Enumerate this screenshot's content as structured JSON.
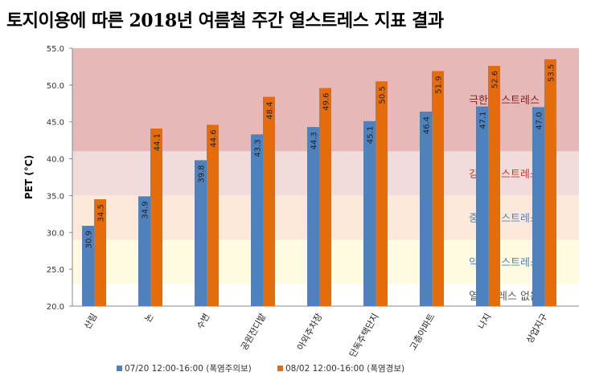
{
  "title": "토지이용에 따른 2018년 여름철 주간 열스트레스 지표 결과",
  "chart_data": {
    "type": "bar",
    "title": "토지이용에 따른 2018년 여름철 주간 열스트레스 지표 결과",
    "xlabel": "",
    "ylabel": "PET (°C)",
    "ylim": [
      20,
      55
    ],
    "yticks": [
      "20.0",
      "25.0",
      "30.0",
      "35.0",
      "40.0",
      "45.0",
      "50.0",
      "55.0"
    ],
    "categories": [
      "산림",
      "논",
      "수변",
      "공원잔디밭",
      "아외주차장",
      "단독주택단지",
      "고층아파트",
      "나지",
      "상업지구"
    ],
    "series": [
      {
        "name": "07/20 12:00-16:00 (폭염주의보)",
        "color": "#4f81bd",
        "values": [
          30.9,
          34.9,
          39.8,
          43.3,
          44.3,
          45.1,
          46.4,
          47.1,
          47.0
        ]
      },
      {
        "name": "08/02 12:00-16:00 (폭염경보)",
        "color": "#e46c0a",
        "values": [
          34.5,
          44.1,
          44.6,
          48.4,
          49.6,
          50.5,
          51.9,
          52.6,
          53.5
        ]
      }
    ],
    "bands": [
      {
        "label": "극한 열스트레스",
        "from": 41,
        "to": 55,
        "color": "#e6b9b8",
        "text_color": "#7f1f1f"
      },
      {
        "label": "강한 열스트레스",
        "from": 35,
        "to": 41,
        "color": "#f2dcdb",
        "text_color": "#c0392b"
      },
      {
        "label": "중간 열스트레스",
        "from": 29,
        "to": 35,
        "color": "#fde9d9",
        "text_color": "#4f81bd"
      },
      {
        "label": "약한 열스트레스",
        "from": 23,
        "to": 29,
        "color": "#fefbe0",
        "text_color": "#4f81bd"
      },
      {
        "label": "열스트레스 없음",
        "from": 20,
        "to": 23,
        "color": "#ffffff",
        "text_color": "#595959"
      }
    ],
    "legend": "bottom",
    "grid": false
  }
}
